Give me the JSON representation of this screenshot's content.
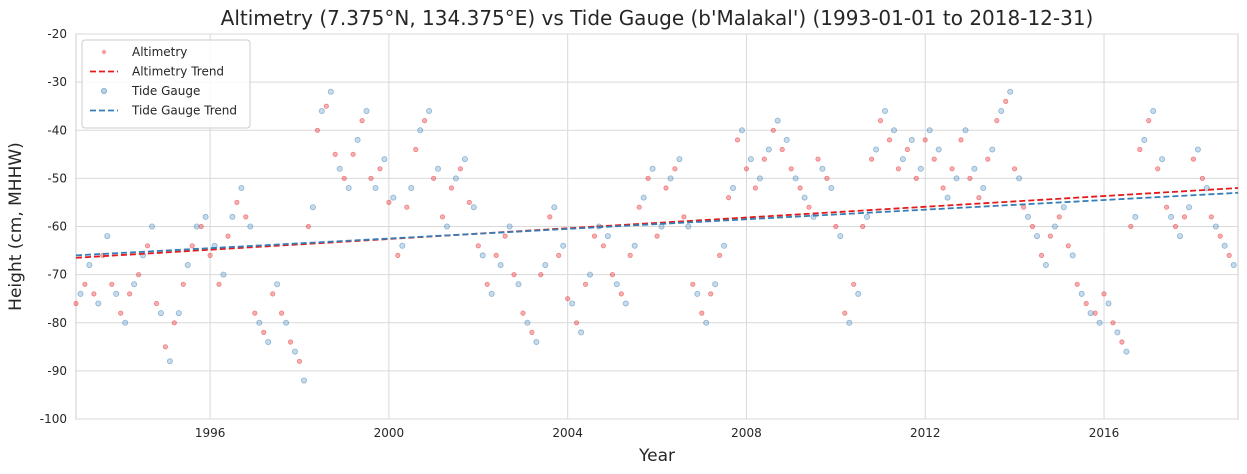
{
  "chart_data": {
    "type": "scatter",
    "title": "Altimetry (7.375°N, 134.375°E) vs Tide Gauge (b'Malakal') (1993-01-01 to 2018-12-31)",
    "xlabel": "Year",
    "ylabel": "Height (cm, MHHW)",
    "xlim": [
      "1993-01-01",
      "2018-12-31"
    ],
    "ylim": [
      -100,
      -20
    ],
    "x_ticks": [
      "1996",
      "2000",
      "2004",
      "2008",
      "2012",
      "2016"
    ],
    "y_ticks": [
      -100,
      -90,
      -80,
      -70,
      -60,
      -50,
      -40,
      -30,
      -20
    ],
    "grid": true,
    "legend_position": "top-left",
    "colors": {
      "altimetry": "#e41a1c",
      "tide_gauge": "#377eb8"
    },
    "series": [
      {
        "name": "Altimetry",
        "kind": "points",
        "x": [
          "1993.0",
          "1993.2",
          "1993.4",
          "1993.6",
          "1993.8",
          "1994.0",
          "1994.2",
          "1994.4",
          "1994.6",
          "1994.8",
          "1995.0",
          "1995.2",
          "1995.4",
          "1995.6",
          "1995.8",
          "1996.0",
          "1996.2",
          "1996.4",
          "1996.6",
          "1996.8",
          "1997.0",
          "1997.2",
          "1997.4",
          "1997.6",
          "1997.8",
          "1998.0",
          "1998.2",
          "1998.4",
          "1998.6",
          "1998.8",
          "1999.0",
          "1999.2",
          "1999.4",
          "1999.6",
          "1999.8",
          "2000.0",
          "2000.2",
          "2000.4",
          "2000.6",
          "2000.8",
          "2001.0",
          "2001.2",
          "2001.4",
          "2001.6",
          "2001.8",
          "2002.0",
          "2002.2",
          "2002.4",
          "2002.6",
          "2002.8",
          "2003.0",
          "2003.2",
          "2003.4",
          "2003.6",
          "2003.8",
          "2004.0",
          "2004.2",
          "2004.4",
          "2004.6",
          "2004.8",
          "2005.0",
          "2005.2",
          "2005.4",
          "2005.6",
          "2005.8",
          "2006.0",
          "2006.2",
          "2006.4",
          "2006.6",
          "2006.8",
          "2007.0",
          "2007.2",
          "2007.4",
          "2007.6",
          "2007.8",
          "2008.0",
          "2008.2",
          "2008.4",
          "2008.6",
          "2008.8",
          "2009.0",
          "2009.2",
          "2009.4",
          "2009.6",
          "2009.8",
          "2010.0",
          "2010.2",
          "2010.4",
          "2010.6",
          "2010.8",
          "2011.0",
          "2011.2",
          "2011.4",
          "2011.6",
          "2011.8",
          "2012.0",
          "2012.2",
          "2012.4",
          "2012.6",
          "2012.8",
          "2013.0",
          "2013.2",
          "2013.4",
          "2013.6",
          "2013.8",
          "2014.0",
          "2014.2",
          "2014.4",
          "2014.6",
          "2014.8",
          "2015.0",
          "2015.2",
          "2015.4",
          "2015.6",
          "2015.8",
          "2016.0",
          "2016.2",
          "2016.4",
          "2016.6",
          "2016.8",
          "2017.0",
          "2017.2",
          "2017.4",
          "2017.6",
          "2017.8",
          "2018.0",
          "2018.2",
          "2018.4",
          "2018.6",
          "2018.8"
        ],
        "y": [
          -76,
          -72,
          -74,
          -66,
          -72,
          -78,
          -74,
          -70,
          -64,
          -76,
          -85,
          -80,
          -72,
          -64,
          -60,
          -66,
          -72,
          -62,
          -55,
          -58,
          -78,
          -82,
          -74,
          -78,
          -84,
          -88,
          -60,
          -40,
          -35,
          -45,
          -50,
          -45,
          -38,
          -50,
          -48,
          -55,
          -66,
          -56,
          -44,
          -38,
          -50,
          -58,
          -52,
          -48,
          -55,
          -64,
          -72,
          -66,
          -62,
          -70,
          -78,
          -82,
          -70,
          -58,
          -66,
          -75,
          -80,
          -72,
          -62,
          -64,
          -70,
          -74,
          -66,
          -56,
          -50,
          -62,
          -52,
          -48,
          -58,
          -72,
          -78,
          -74,
          -66,
          -54,
          -42,
          -48,
          -52,
          -46,
          -40,
          -44,
          -48,
          -52,
          -56,
          -46,
          -50,
          -60,
          -78,
          -72,
          -60,
          -46,
          -38,
          -42,
          -48,
          -44,
          -50,
          -42,
          -46,
          -52,
          -48,
          -42,
          -50,
          -54,
          -46,
          -38,
          -34,
          -48,
          -56,
          -60,
          -66,
          -62,
          -58,
          -64,
          -72,
          -76,
          -78,
          -74,
          -80,
          -84,
          -60,
          -44,
          -38,
          -48,
          -56,
          -60,
          -58,
          -46,
          -50,
          -58,
          -62,
          -66
        ]
      },
      {
        "name": "Altimetry Trend",
        "kind": "trend",
        "x": [
          "1993-01-01",
          "2018-12-31"
        ],
        "y": [
          -66.5,
          -52.0
        ]
      },
      {
        "name": "Tide Gauge",
        "kind": "points",
        "x": [
          "1993.1",
          "1993.3",
          "1993.5",
          "1993.7",
          "1993.9",
          "1994.1",
          "1994.3",
          "1994.5",
          "1994.7",
          "1994.9",
          "1995.1",
          "1995.3",
          "1995.5",
          "1995.7",
          "1995.9",
          "1996.1",
          "1996.3",
          "1996.5",
          "1996.7",
          "1996.9",
          "1997.1",
          "1997.3",
          "1997.5",
          "1997.7",
          "1997.9",
          "1998.1",
          "1998.3",
          "1998.5",
          "1998.7",
          "1998.9",
          "1999.1",
          "1999.3",
          "1999.5",
          "1999.7",
          "1999.9",
          "2000.1",
          "2000.3",
          "2000.5",
          "2000.7",
          "2000.9",
          "2001.1",
          "2001.3",
          "2001.5",
          "2001.7",
          "2001.9",
          "2002.1",
          "2002.3",
          "2002.5",
          "2002.7",
          "2002.9",
          "2003.1",
          "2003.3",
          "2003.5",
          "2003.7",
          "2003.9",
          "2004.1",
          "2004.3",
          "2004.5",
          "2004.7",
          "2004.9",
          "2005.1",
          "2005.3",
          "2005.5",
          "2005.7",
          "2005.9",
          "2006.1",
          "2006.3",
          "2006.5",
          "2006.7",
          "2006.9",
          "2007.1",
          "2007.3",
          "2007.5",
          "2007.7",
          "2007.9",
          "2008.1",
          "2008.3",
          "2008.5",
          "2008.7",
          "2008.9",
          "2009.1",
          "2009.3",
          "2009.5",
          "2009.7",
          "2009.9",
          "2010.1",
          "2010.3",
          "2010.5",
          "2010.7",
          "2010.9",
          "2011.1",
          "2011.3",
          "2011.5",
          "2011.7",
          "2011.9",
          "2012.1",
          "2012.3",
          "2012.5",
          "2012.7",
          "2012.9",
          "2013.1",
          "2013.3",
          "2013.5",
          "2013.7",
          "2013.9",
          "2014.1",
          "2014.3",
          "2014.5",
          "2014.7",
          "2014.9",
          "2015.1",
          "2015.3",
          "2015.5",
          "2015.7",
          "2015.9",
          "2016.1",
          "2016.3",
          "2016.5",
          "2016.7",
          "2016.9",
          "2017.1",
          "2017.3",
          "2017.5",
          "2017.7",
          "2017.9",
          "2018.1",
          "2018.3",
          "2018.5",
          "2018.7",
          "2018.9"
        ],
        "y": [
          -74,
          -68,
          -76,
          -62,
          -74,
          -80,
          -72,
          -66,
          -60,
          -78,
          -88,
          -78,
          -68,
          -60,
          -58,
          -64,
          -70,
          -58,
          -52,
          -60,
          -80,
          -84,
          -72,
          -80,
          -86,
          -92,
          -56,
          -36,
          -32,
          -48,
          -52,
          -42,
          -36,
          -52,
          -46,
          -54,
          -64,
          -52,
          -40,
          -36,
          -48,
          -60,
          -50,
          -46,
          -56,
          -66,
          -74,
          -68,
          -60,
          -72,
          -80,
          -84,
          -68,
          -56,
          -64,
          -76,
          -82,
          -70,
          -60,
          -62,
          -72,
          -76,
          -64,
          -54,
          -48,
          -60,
          -50,
          -46,
          -60,
          -74,
          -80,
          -72,
          -64,
          -52,
          -40,
          -46,
          -50,
          -44,
          -38,
          -42,
          -50,
          -54,
          -58,
          -48,
          -52,
          -62,
          -80,
          -74,
          -58,
          -44,
          -36,
          -40,
          -46,
          -42,
          -48,
          -40,
          -44,
          -54,
          -50,
          -40,
          -48,
          -52,
          -44,
          -36,
          -32,
          -50,
          -58,
          -62,
          -68,
          -60,
          -56,
          -66,
          -74,
          -78,
          -80,
          -76,
          -82,
          -86,
          -58,
          -42,
          -36,
          -46,
          -58,
          -62,
          -56,
          -44,
          -52,
          -60,
          -64,
          -68
        ]
      },
      {
        "name": "Tide Gauge Trend",
        "kind": "trend",
        "x": [
          "1993-01-01",
          "2018-12-31"
        ],
        "y": [
          -66.0,
          -53.0
        ]
      }
    ]
  }
}
